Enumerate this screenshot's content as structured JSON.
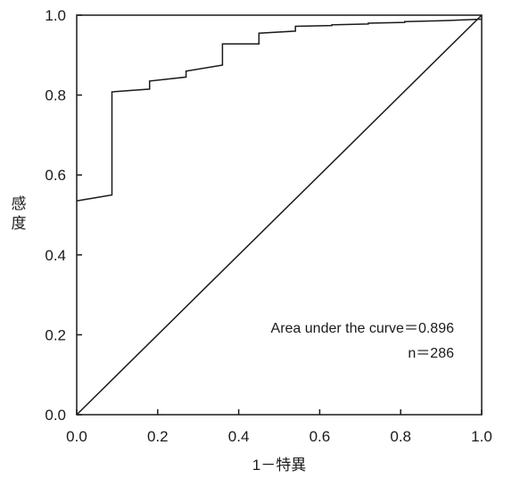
{
  "chart_data": {
    "type": "line",
    "title": "",
    "xlabel": "1－特異",
    "ylabel": "感度",
    "ylabel_chars": [
      "感",
      "度"
    ],
    "xlim": [
      0,
      1
    ],
    "ylim": [
      0,
      1
    ],
    "x_ticks": [
      0.0,
      0.2,
      0.4,
      0.6,
      0.8,
      1.0
    ],
    "y_ticks": [
      0.0,
      0.2,
      0.4,
      0.6,
      0.8,
      1.0
    ],
    "x_tick_labels": [
      "0.0",
      "0.2",
      "0.4",
      "0.6",
      "0.8",
      "1.0"
    ],
    "y_tick_labels": [
      "0.0",
      "0.2",
      "0.4",
      "0.6",
      "0.8",
      "1.0"
    ],
    "grid": false,
    "series": [
      {
        "x": [
          0.0,
          0.087,
          0.087,
          0.18,
          0.18,
          0.27,
          0.27,
          0.36,
          0.36,
          0.45,
          0.45,
          0.54,
          0.54,
          0.63,
          0.63,
          0.72,
          0.72,
          0.81,
          0.81,
          0.9,
          1.0
        ],
        "y": [
          0.535,
          0.55,
          0.808,
          0.815,
          0.835,
          0.845,
          0.86,
          0.875,
          0.928,
          0.928,
          0.955,
          0.96,
          0.972,
          0.974,
          0.976,
          0.978,
          0.98,
          0.982,
          0.984,
          0.986,
          0.99
        ]
      },
      {
        "x": [
          0.0,
          1.0
        ],
        "y": [
          0.0,
          1.0
        ]
      }
    ],
    "annotations": [
      "Area under the curve＝0.896",
      "n＝286"
    ]
  }
}
